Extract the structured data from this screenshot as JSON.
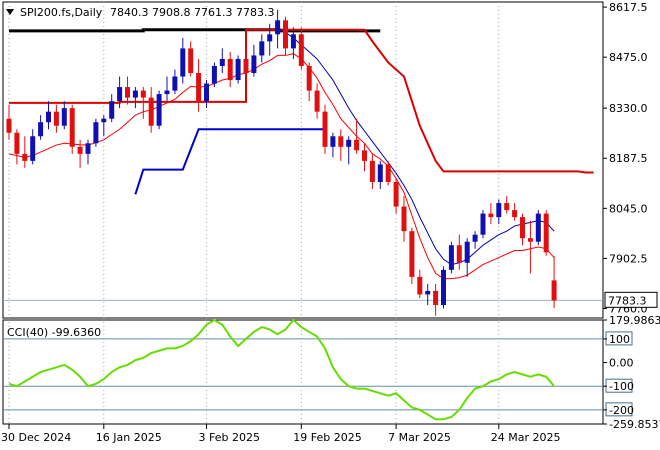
{
  "chart_data": [
    {
      "type": "candlestick",
      "header": {
        "symbol": "SPI200.fs,Daily",
        "ohlc": "7840.3 7908.8 7761.3 7783.3"
      },
      "y_ticks": [
        {
          "value": 8617.5,
          "label": "8617.5"
        },
        {
          "value": 8475.0,
          "label": "8475.0"
        },
        {
          "value": 8330.0,
          "label": "8330.0"
        },
        {
          "value": 8187.5,
          "label": "8187.5"
        },
        {
          "value": 8045.0,
          "label": "8045.0"
        },
        {
          "value": 7902.5,
          "label": "7902.5"
        },
        {
          "value": 7760.0,
          "label": "7760.0"
        }
      ],
      "ylim": [
        7733,
        8632
      ],
      "last_price": {
        "value": 7783.3,
        "label": "7783.3"
      },
      "x_ticks": [
        {
          "index": 0,
          "label": "30 Dec 2024"
        },
        {
          "index": 12,
          "label": "16 Jan 2025"
        },
        {
          "index": 25,
          "label": "3 Feb 2025"
        },
        {
          "index": 37,
          "label": "19 Feb 2025"
        },
        {
          "index": 49,
          "label": "7 Mar 2025"
        },
        {
          "index": 62,
          "label": "24 Mar 2025"
        }
      ],
      "candles": [
        [
          8300,
          8340,
          8240,
          8260
        ],
        [
          8260,
          8270,
          8170,
          8200
        ],
        [
          8200,
          8250,
          8160,
          8180
        ],
        [
          8180,
          8270,
          8170,
          8250
        ],
        [
          8250,
          8310,
          8240,
          8290
        ],
        [
          8290,
          8350,
          8270,
          8320
        ],
        [
          8320,
          8340,
          8260,
          8280
        ],
        [
          8280,
          8350,
          8270,
          8330
        ],
        [
          8330,
          8340,
          8200,
          8220
        ],
        [
          8220,
          8240,
          8160,
          8200
        ],
        [
          8200,
          8240,
          8170,
          8230
        ],
        [
          8230,
          8300,
          8220,
          8290
        ],
        [
          8290,
          8310,
          8250,
          8300
        ],
        [
          8300,
          8370,
          8290,
          8350
        ],
        [
          8350,
          8420,
          8330,
          8390
        ],
        [
          8390,
          8420,
          8340,
          8360
        ],
        [
          8360,
          8390,
          8330,
          8380
        ],
        [
          8380,
          8390,
          8300,
          8360
        ],
        [
          8360,
          8390,
          8260,
          8280
        ],
        [
          8280,
          8380,
          8270,
          8370
        ],
        [
          8370,
          8420,
          8350,
          8380
        ],
        [
          8380,
          8440,
          8370,
          8420
        ],
        [
          8420,
          8530,
          8400,
          8500
        ],
        [
          8500,
          8520,
          8420,
          8430
        ],
        [
          8430,
          8470,
          8320,
          8350
        ],
        [
          8350,
          8410,
          8330,
          8400
        ],
        [
          8400,
          8460,
          8390,
          8450
        ],
        [
          8450,
          8500,
          8430,
          8470
        ],
        [
          8470,
          8490,
          8390,
          8410
        ],
        [
          8410,
          8480,
          8400,
          8470
        ],
        [
          8470,
          8500,
          8420,
          8430
        ],
        [
          8430,
          8510,
          8420,
          8480
        ],
        [
          8480,
          8540,
          8460,
          8520
        ],
        [
          8520,
          8570,
          8480,
          8540
        ],
        [
          8540,
          8610,
          8500,
          8580
        ],
        [
          8580,
          8590,
          8480,
          8500
        ],
        [
          8500,
          8560,
          8470,
          8540
        ],
        [
          8540,
          8560,
          8440,
          8450
        ],
        [
          8450,
          8460,
          8350,
          8380
        ],
        [
          8380,
          8400,
          8300,
          8320
        ],
        [
          8320,
          8340,
          8200,
          8220
        ],
        [
          8220,
          8260,
          8190,
          8250
        ],
        [
          8250,
          8270,
          8180,
          8220
        ],
        [
          8220,
          8250,
          8170,
          8240
        ],
        [
          8240,
          8300,
          8200,
          8210
        ],
        [
          8210,
          8230,
          8150,
          8180
        ],
        [
          8180,
          8200,
          8100,
          8120
        ],
        [
          8120,
          8180,
          8100,
          8170
        ],
        [
          8170,
          8180,
          8110,
          8120
        ],
        [
          8120,
          8130,
          8030,
          8050
        ],
        [
          8050,
          8080,
          7950,
          7980
        ],
        [
          7980,
          7990,
          7830,
          7850
        ],
        [
          7850,
          7870,
          7790,
          7800
        ],
        [
          7800,
          7830,
          7770,
          7810
        ],
        [
          7810,
          7830,
          7740,
          7770
        ],
        [
          7770,
          7880,
          7760,
          7870
        ],
        [
          7870,
          7950,
          7860,
          7940
        ],
        [
          7940,
          7970,
          7870,
          7890
        ],
        [
          7890,
          7960,
          7850,
          7950
        ],
        [
          7950,
          7980,
          7930,
          7970
        ],
        [
          7970,
          8040,
          7960,
          8030
        ],
        [
          8030,
          8060,
          8000,
          8020
        ],
        [
          8020,
          8070,
          8000,
          8060
        ],
        [
          8060,
          8080,
          8030,
          8040
        ],
        [
          8040,
          8060,
          8010,
          8020
        ],
        [
          8020,
          8030,
          7940,
          7960
        ],
        [
          7960,
          8010,
          7860,
          7950
        ],
        [
          7950,
          8040,
          7940,
          8030
        ],
        [
          8030,
          8040,
          7910,
          7920
        ],
        [
          7840,
          7909,
          7761,
          7783
        ]
      ],
      "moving_averages": [
        {
          "name": "ma_fast",
          "color": "#ff0000",
          "values": [
            8200,
            8195,
            8190,
            8195,
            8205,
            8215,
            8225,
            8230,
            8228,
            8226,
            8225,
            8232,
            8240,
            8255,
            8270,
            8290,
            8310,
            8320,
            8325,
            8335,
            8345,
            8355,
            8375,
            8392,
            8390,
            8392,
            8400,
            8410,
            8415,
            8425,
            8430,
            8440,
            8455,
            8465,
            8480,
            8480,
            8485,
            8470,
            8445,
            8415,
            8375,
            8340,
            8300,
            8275,
            8250,
            8230,
            8200,
            8185,
            8165,
            8130,
            8090,
            8025,
            7960,
            7905,
            7860,
            7845,
            7845,
            7848,
            7855,
            7870,
            7885,
            7895,
            7905,
            7915,
            7925,
            7925,
            7930,
            7935,
            7930,
            7905
          ]
        },
        {
          "name": "ma_slow",
          "color": "#0000aa",
          "values": [
            null,
            null,
            null,
            null,
            null,
            null,
            null,
            null,
            null,
            null,
            null,
            null,
            null,
            null,
            null,
            null,
            null,
            null,
            null,
            null,
            null,
            null,
            null,
            null,
            null,
            null,
            null,
            null,
            null,
            null,
            null,
            null,
            null,
            null,
            8560,
            8545,
            8530,
            8510,
            8490,
            8470,
            8440,
            8410,
            8370,
            8330,
            8295,
            8265,
            8235,
            8205,
            8175,
            8145,
            8110,
            8070,
            8020,
            7975,
            7930,
            7900,
            7885,
            7890,
            7900,
            7920,
            7940,
            7955,
            7970,
            7980,
            7995,
            8000,
            8005,
            8010,
            8005,
            7980
          ]
        }
      ],
      "step_lines": [
        {
          "name": "resistance-black",
          "color": "#000000",
          "points": [
            [
              0,
              8550
            ],
            [
              17,
              8550
            ],
            [
              17,
              8553
            ],
            [
              34,
              8553
            ],
            [
              34,
              8550
            ],
            [
              47,
              8550
            ]
          ]
        },
        {
          "name": "resistance-red",
          "color": "#dd0000",
          "points": [
            [
              0,
              8345
            ],
            [
              14,
              8345
            ],
            [
              14,
              8348
            ],
            [
              30,
              8348
            ],
            [
              30,
              8553
            ],
            [
              45,
              8553
            ],
            [
              46,
              8520
            ],
            [
              48,
              8460
            ],
            [
              50,
              8420
            ],
            [
              52,
              8280
            ],
            [
              54,
              8180
            ],
            [
              55,
              8150
            ],
            [
              72,
              8150
            ],
            [
              73,
              8147
            ],
            [
              74,
              8147
            ]
          ]
        },
        {
          "name": "support-blue",
          "color": "#0000cc",
          "points": [
            [
              16,
              8085
            ],
            [
              17,
              8155
            ],
            [
              22,
              8155
            ],
            [
              24,
              8270
            ],
            [
              40,
              8270
            ]
          ]
        }
      ],
      "indicator": {
        "label": "CCI(40) -99.6360",
        "color": "#66dd00",
        "levels": [
          {
            "value": 179.9863,
            "label": "179.9863"
          },
          {
            "value": 100,
            "label": "100",
            "boxed": true
          },
          {
            "value": 0.0,
            "label": "0.00"
          },
          {
            "value": -100,
            "label": "-100",
            "boxed": true
          },
          {
            "value": -200,
            "label": "-200",
            "boxed": true
          },
          {
            "value": -259.8537,
            "label": "-259.8537"
          }
        ],
        "ylim": [
          -259.8537,
          179.9863
        ],
        "values": [
          -90,
          -100,
          -80,
          -60,
          -40,
          -30,
          -20,
          -10,
          -30,
          -60,
          -100,
          -90,
          -70,
          -40,
          -20,
          -10,
          10,
          20,
          40,
          50,
          60,
          60,
          70,
          90,
          120,
          160,
          180,
          160,
          110,
          70,
          100,
          130,
          150,
          140,
          120,
          140,
          180,
          150,
          130,
          110,
          60,
          -20,
          -70,
          -100,
          -110,
          -110,
          -120,
          -130,
          -140,
          -130,
          -160,
          -190,
          -200,
          -220,
          -240,
          -240,
          -230,
          -200,
          -150,
          -110,
          -100,
          -80,
          -70,
          -50,
          -40,
          -50,
          -60,
          -50,
          -60,
          -99.6
        ]
      }
    }
  ]
}
